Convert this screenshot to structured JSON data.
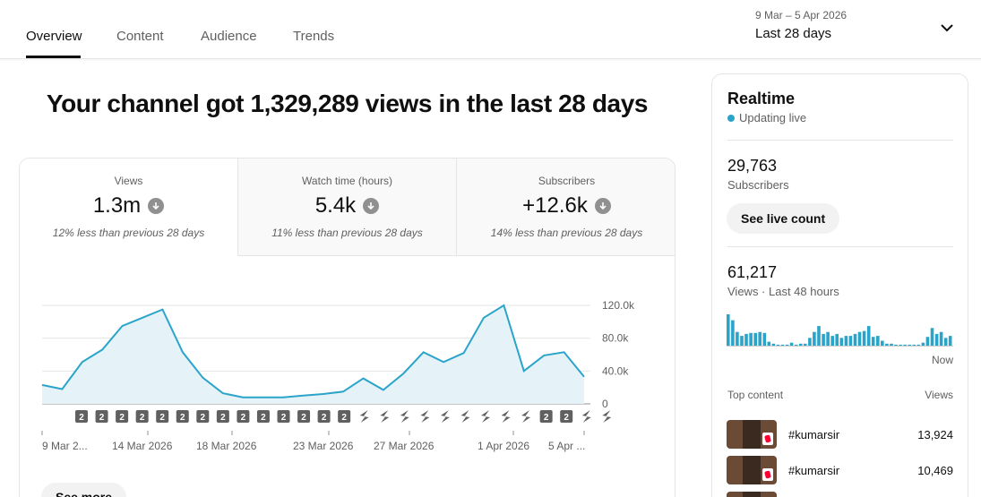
{
  "tabs": [
    {
      "label": "Overview",
      "active": true
    },
    {
      "label": "Content",
      "active": false
    },
    {
      "label": "Audience",
      "active": false
    },
    {
      "label": "Trends",
      "active": false
    }
  ],
  "date_range": {
    "range": "9 Mar – 5 Apr 2026",
    "label": "Last 28 days",
    "icon": "chevron-down-icon"
  },
  "headline": "Your channel got 1,329,289 views in the last 28 days",
  "metrics": [
    {
      "label": "Views",
      "value": "1.3m",
      "delta": "12% less than previous 28 days",
      "icon": "arrow-down-icon"
    },
    {
      "label": "Watch time (hours)",
      "value": "5.4k",
      "delta": "11% less than previous 28 days",
      "icon": "arrow-down-icon"
    },
    {
      "label": "Subscribers",
      "value": "+12.6k",
      "delta": "14% less than previous 28 days",
      "icon": "arrow-down-icon"
    }
  ],
  "chart_data": {
    "type": "area",
    "series": [
      {
        "values": [
          23000,
          18000,
          51000,
          66000,
          95000,
          105000,
          115000,
          63000,
          32000,
          13000,
          8000,
          8000,
          8000,
          10000,
          12000,
          15000,
          31000,
          17000,
          37000,
          63000,
          51000,
          62000,
          105000,
          120000,
          40000,
          59000,
          63000,
          33000
        ]
      }
    ],
    "x_tick_labels": [
      "9 Mar 2...",
      "14 Mar 2026",
      "18 Mar 2026",
      "23 Mar 2026",
      "27 Mar 2026",
      "1 Apr 2026",
      "5 Apr ..."
    ],
    "y_tick_labels": [
      "120.0k",
      "80.0k",
      "40.0k",
      "0"
    ],
    "ylim": [
      0,
      120000
    ],
    "grid": true,
    "color": "#2ba4c9",
    "markers": [
      "2",
      "2",
      "2",
      "2",
      "2",
      "2",
      "2",
      "2",
      "2",
      "2",
      "2",
      "2",
      "2",
      "2",
      "short",
      "short",
      "short",
      "short",
      "short",
      "short",
      "short",
      "short",
      "short",
      "2",
      "2",
      "short",
      "short"
    ]
  },
  "see_more_label": "See more",
  "realtime": {
    "title": "Realtime",
    "live_label": "Updating live",
    "subscribers_value": "29,763",
    "subscribers_label": "Subscribers",
    "live_count_button": "See live count",
    "views_value": "61,217",
    "views_label": "Views · Last 48 hours",
    "now_label": "Now",
    "bar_values": [
      32,
      26,
      14,
      10,
      12,
      13,
      13,
      14,
      13,
      4,
      2,
      1,
      1,
      1,
      3,
      1,
      2,
      2,
      8,
      14,
      20,
      12,
      14,
      10,
      12,
      8,
      10,
      10,
      12,
      14,
      15,
      20,
      9,
      10,
      5,
      2,
      2,
      1,
      1,
      1,
      1,
      1,
      1,
      3,
      9,
      18,
      12,
      14,
      8,
      10
    ],
    "top_content_label": "Top content",
    "views_col_label": "Views",
    "top_content": [
      {
        "title": "#kumarsir",
        "views": "13,924"
      },
      {
        "title": "#kumarsir",
        "views": "10,469"
      }
    ]
  }
}
